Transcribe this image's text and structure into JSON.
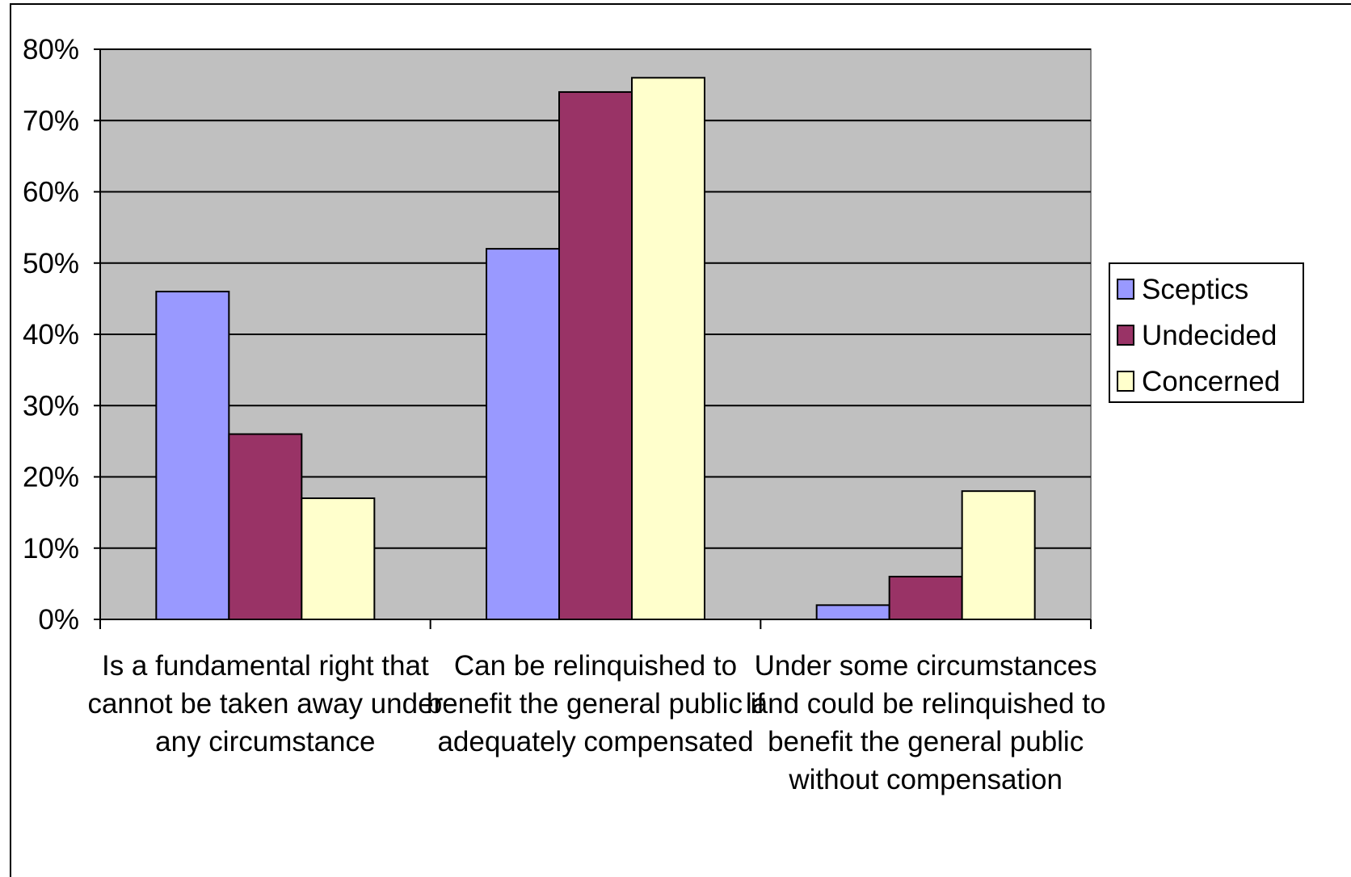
{
  "chart_data": {
    "type": "bar",
    "categories": [
      [
        "Is a fundamental right that",
        "cannot be taken away under",
        "any circumstance"
      ],
      [
        "Can be relinquished to",
        "benefit the general public if",
        "adequately compensated"
      ],
      [
        "Under some circumstances",
        "land could be relinquished to",
        "benefit the general public",
        "without compensation"
      ]
    ],
    "series": [
      {
        "name": "Sceptics",
        "values": [
          46,
          52,
          2
        ],
        "color": "#9999ff"
      },
      {
        "name": "Undecided",
        "values": [
          26,
          74,
          6
        ],
        "color": "#993366"
      },
      {
        "name": "Concerned",
        "values": [
          17,
          76,
          18
        ],
        "color": "#ffffcc"
      }
    ],
    "ylim": [
      0,
      80
    ],
    "yticks": [
      "0%",
      "10%",
      "20%",
      "30%",
      "40%",
      "50%",
      "60%",
      "70%",
      "80%"
    ],
    "grid": true,
    "plot_background": "#c0c0c0",
    "legend_position": "right"
  }
}
